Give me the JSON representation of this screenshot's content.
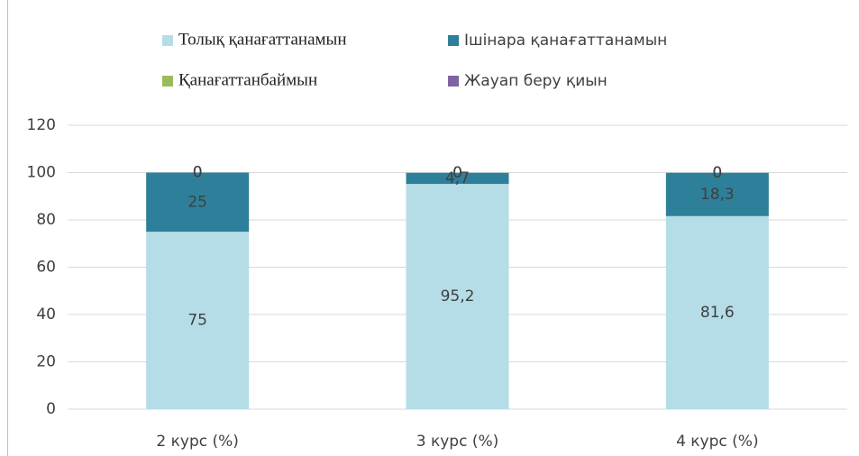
{
  "chart_data": {
    "type": "stacked_bar",
    "categories": [
      "2 курс (%)",
      "3 курс (%)",
      "4 курс (%)"
    ],
    "series": [
      {
        "name": "Толық қанағаттанамын",
        "color": "#b4dde8",
        "values": [
          75,
          95.2,
          81.6
        ],
        "value_labels": [
          "75",
          "95,2",
          "81,6"
        ]
      },
      {
        "name": "Ішінара қанағаттанамын",
        "color": "#2e7f99",
        "values": [
          25,
          4.7,
          18.3
        ],
        "value_labels": [
          "25",
          "4,7",
          "18,3"
        ]
      },
      {
        "name": "Қанағаттанбаймын",
        "color": "#9bbb59",
        "values": [
          0,
          0,
          0
        ]
      },
      {
        "name": "Жауап беру қиын",
        "color": "#8064a2",
        "values": [
          0,
          0,
          0
        ]
      }
    ],
    "ylim": [
      0,
      120
    ],
    "yticks": [
      0,
      20,
      40,
      60,
      80,
      100,
      120
    ],
    "grid": true,
    "legend": "top"
  }
}
